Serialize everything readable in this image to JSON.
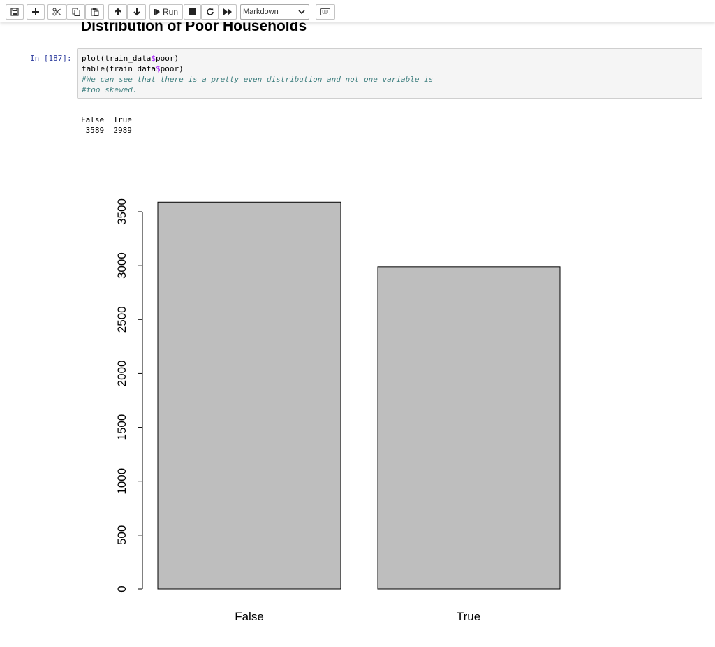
{
  "toolbar": {
    "run_label": "Run",
    "cell_type": "Markdown"
  },
  "notebook": {
    "heading": "Distribution of Poor Households",
    "prompt": "In [187]:",
    "code": {
      "line1_a": "plot(train_data",
      "line1_b": "$",
      "line1_c": "poor)",
      "line2_a": "table(train_data",
      "line2_b": "$",
      "line2_c": "poor)",
      "comment1": "#We can see that there is a pretty even distribution and not one variable is",
      "comment2": "#too skewed."
    },
    "output": {
      "header": "False  True",
      "values": " 3589  2989"
    }
  },
  "chart_data": {
    "type": "bar",
    "categories": [
      "False",
      "True"
    ],
    "values": [
      3589,
      2989
    ],
    "title": "",
    "xlabel": "",
    "ylabel": "",
    "ylim": [
      0,
      3500
    ],
    "yticks": [
      0,
      500,
      1000,
      1500,
      2000,
      2500,
      3000,
      3500
    ],
    "bar_color": "#bebebe",
    "grid": false
  }
}
